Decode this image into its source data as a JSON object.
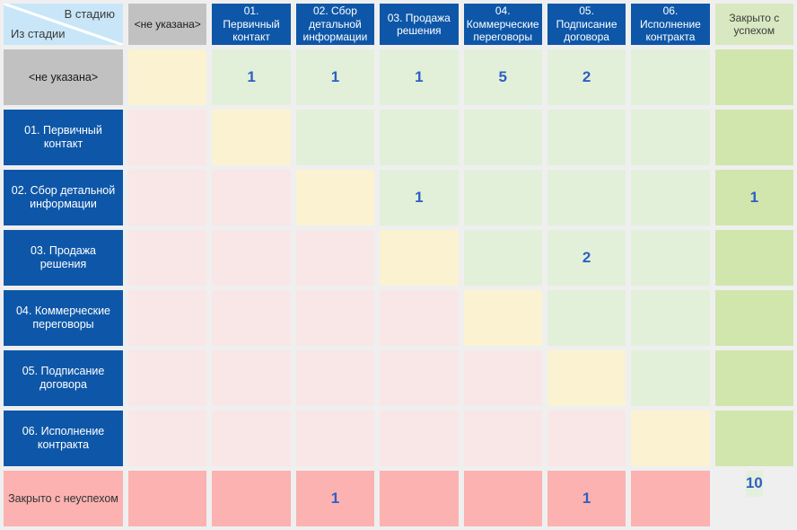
{
  "corner": {
    "to_label": "В стадию",
    "from_label": "Из стадии"
  },
  "columns": [
    {
      "id": "none",
      "label": "<не указана>",
      "type": "gray"
    },
    {
      "id": "01",
      "label": "01. Первичный контакт",
      "type": "blue"
    },
    {
      "id": "02",
      "label": "02. Сбор детальной информации",
      "type": "blue"
    },
    {
      "id": "03",
      "label": "03. Продажа решения",
      "type": "blue"
    },
    {
      "id": "04",
      "label": "04. Коммерческие переговоры",
      "type": "blue"
    },
    {
      "id": "05",
      "label": "05. Подписание договора",
      "type": "blue"
    },
    {
      "id": "06",
      "label": "06. Исполнение контракта",
      "type": "blue"
    },
    {
      "id": "success",
      "label": "Закрыто с успехом",
      "type": "green"
    }
  ],
  "rows": [
    {
      "id": "none",
      "label": "<не указана>",
      "type": "gray",
      "cells": [
        {
          "c": "diag"
        },
        {
          "c": "green",
          "v": "1"
        },
        {
          "c": "green",
          "v": "1"
        },
        {
          "c": "green",
          "v": "1"
        },
        {
          "c": "green",
          "v": "5"
        },
        {
          "c": "green",
          "v": "2"
        },
        {
          "c": "green"
        },
        {
          "c": "sgreen"
        }
      ]
    },
    {
      "id": "01",
      "label": "01. Первичный контакт",
      "type": "blue",
      "cells": [
        {
          "c": "pink"
        },
        {
          "c": "diag"
        },
        {
          "c": "green"
        },
        {
          "c": "green"
        },
        {
          "c": "green"
        },
        {
          "c": "green"
        },
        {
          "c": "green"
        },
        {
          "c": "sgreen"
        }
      ]
    },
    {
      "id": "02",
      "label": "02. Сбор детальной информации",
      "type": "blue",
      "cells": [
        {
          "c": "pink"
        },
        {
          "c": "pink"
        },
        {
          "c": "diag"
        },
        {
          "c": "green",
          "v": "1"
        },
        {
          "c": "green"
        },
        {
          "c": "green"
        },
        {
          "c": "green"
        },
        {
          "c": "sgreen",
          "v": "1"
        }
      ]
    },
    {
      "id": "03",
      "label": "03. Продажа решения",
      "type": "blue",
      "cells": [
        {
          "c": "pink"
        },
        {
          "c": "pink"
        },
        {
          "c": "pink"
        },
        {
          "c": "diag"
        },
        {
          "c": "green"
        },
        {
          "c": "green",
          "v": "2"
        },
        {
          "c": "green"
        },
        {
          "c": "sgreen"
        }
      ]
    },
    {
      "id": "04",
      "label": "04. Коммерческие переговоры",
      "type": "blue",
      "cells": [
        {
          "c": "pink"
        },
        {
          "c": "pink"
        },
        {
          "c": "pink"
        },
        {
          "c": "pink"
        },
        {
          "c": "diag"
        },
        {
          "c": "green"
        },
        {
          "c": "green"
        },
        {
          "c": "sgreen"
        }
      ]
    },
    {
      "id": "05",
      "label": "05. Подписание договора",
      "type": "blue",
      "cells": [
        {
          "c": "pink"
        },
        {
          "c": "pink"
        },
        {
          "c": "pink"
        },
        {
          "c": "pink"
        },
        {
          "c": "pink"
        },
        {
          "c": "diag"
        },
        {
          "c": "green"
        },
        {
          "c": "sgreen"
        }
      ]
    },
    {
      "id": "06",
      "label": "06. Исполнение контракта",
      "type": "blue",
      "cells": [
        {
          "c": "pink"
        },
        {
          "c": "pink"
        },
        {
          "c": "pink"
        },
        {
          "c": "pink"
        },
        {
          "c": "pink"
        },
        {
          "c": "pink"
        },
        {
          "c": "diag"
        },
        {
          "c": "sgreen"
        }
      ]
    },
    {
      "id": "fail",
      "label": "Закрыто с неуспехом",
      "type": "pink",
      "cells": [
        {
          "c": "spink"
        },
        {
          "c": "spink"
        },
        {
          "c": "spink",
          "v": "1"
        },
        {
          "c": "spink"
        },
        {
          "c": "spink"
        },
        {
          "c": "spink",
          "v": "1"
        },
        {
          "c": "spink"
        },
        {
          "c": "split",
          "top": {
            "c": "lgreen",
            "v": "10"
          },
          "bottom": {
            "c": "lpink",
            "v": ""
          }
        }
      ]
    }
  ],
  "colors": {
    "blue_header": "#0e57a8",
    "gray_header": "#c1c1c1",
    "green_header": "#d8e8c1",
    "pink_header": "#fbb2b1",
    "diagonal_cell": "#fbf2d1",
    "forward_cell": "#e2f0da",
    "backward_cell": "#f8e7e6",
    "success_column": "#d1e6ad",
    "fail_row": "#fbb2b1",
    "corner_bg": "#c8e6f8",
    "number_text": "#2f5fc4"
  }
}
